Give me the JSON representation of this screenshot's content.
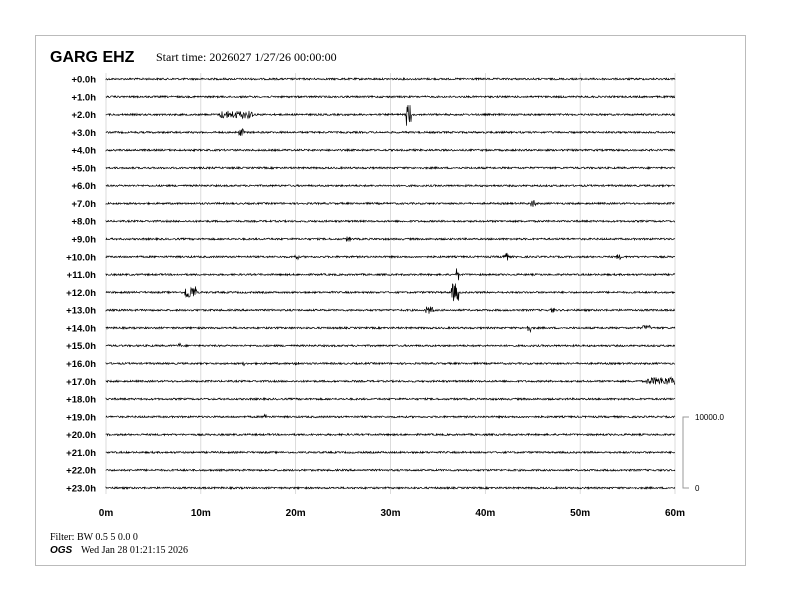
{
  "header": {
    "station": "GARG EHZ",
    "start_label": "Start time: 2026027  1/27/26 00:00:00"
  },
  "footer": {
    "filter": "Filter: BW 0.5 5 0.0 0",
    "org": "OGS",
    "timestamp": "Wed Jan 28 01:21:15 2026"
  },
  "chart_data": {
    "type": "line",
    "title": "GARG EHZ",
    "row_labels": [
      "+0.0h",
      "+1.0h",
      "+2.0h",
      "+3.0h",
      "+4.0h",
      "+5.0h",
      "+6.0h",
      "+7.0h",
      "+8.0h",
      "+9.0h",
      "+10.0h",
      "+11.0h",
      "+12.0h",
      "+13.0h",
      "+14.0h",
      "+15.0h",
      "+16.0h",
      "+17.0h",
      "+18.0h",
      "+19.0h",
      "+20.0h",
      "+21.0h",
      "+22.0h",
      "+23.0h"
    ],
    "x_ticks": [
      "0m",
      "10m",
      "20m",
      "30m",
      "40m",
      "50m",
      "60m"
    ],
    "xlim": [
      0,
      60
    ],
    "grid": true,
    "scale": {
      "top": "10000.0",
      "bottom": "0"
    },
    "trace_color": "#000000",
    "grid_color": "#cccccc",
    "events": [
      {
        "hour": 2,
        "start_min": 12.0,
        "end_min": 15.5,
        "amp": 3
      },
      {
        "hour": 2,
        "start_min": 31.6,
        "end_min": 32.2,
        "amp": 9
      },
      {
        "hour": 3,
        "start_min": 14.0,
        "end_min": 14.5,
        "amp": 3
      },
      {
        "hour": 7,
        "start_min": 44.8,
        "end_min": 45.3,
        "amp": 3
      },
      {
        "hour": 9,
        "start_min": 25.3,
        "end_min": 25.8,
        "amp": 2
      },
      {
        "hour": 10,
        "start_min": 19.9,
        "end_min": 20.3,
        "amp": 2
      },
      {
        "hour": 10,
        "start_min": 41.8,
        "end_min": 42.4,
        "amp": 3
      },
      {
        "hour": 10,
        "start_min": 53.8,
        "end_min": 54.3,
        "amp": 2
      },
      {
        "hour": 11,
        "start_min": 36.9,
        "end_min": 37.2,
        "amp": 5
      },
      {
        "hour": 12,
        "start_min": 8.3,
        "end_min": 9.6,
        "amp": 5
      },
      {
        "hour": 12,
        "start_min": 36.4,
        "end_min": 37.2,
        "amp": 7
      },
      {
        "hour": 13,
        "start_min": 33.7,
        "end_min": 34.6,
        "amp": 3
      },
      {
        "hour": 13,
        "start_min": 46.9,
        "end_min": 47.3,
        "amp": 2
      },
      {
        "hour": 14,
        "start_min": 44.4,
        "end_min": 44.8,
        "amp": 3
      },
      {
        "hour": 14,
        "start_min": 56.6,
        "end_min": 57.4,
        "amp": 2
      },
      {
        "hour": 15,
        "start_min": 7.6,
        "end_min": 7.9,
        "amp": 2
      },
      {
        "hour": 16,
        "start_min": 14.4,
        "end_min": 14.7,
        "amp": 2
      },
      {
        "hour": 16,
        "start_min": 19.9,
        "end_min": 20.3,
        "amp": 2
      },
      {
        "hour": 17,
        "start_min": 57.0,
        "end_min": 60.0,
        "amp": 3
      },
      {
        "hour": 19,
        "start_min": 16.7,
        "end_min": 16.9,
        "amp": 4
      }
    ]
  }
}
